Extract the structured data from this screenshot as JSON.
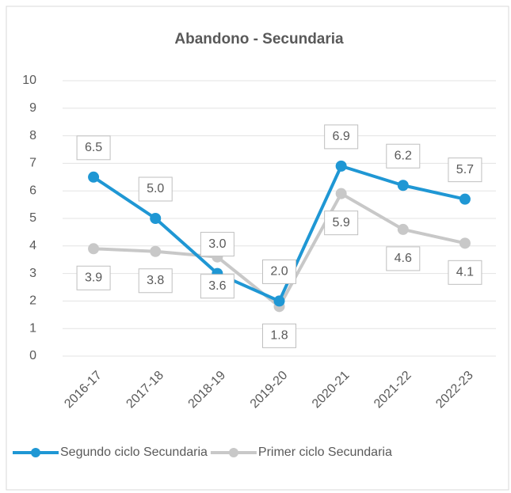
{
  "chart_data": {
    "type": "line",
    "title": "Abandono - Secundaria",
    "categories": [
      "2016-17",
      "2017-18",
      "2018-19",
      "2019-20",
      "2020-21",
      "2021-22",
      "2022-23"
    ],
    "series": [
      {
        "name": "Segundo ciclo Secundaria",
        "color": "#1f97d4",
        "values": [
          6.5,
          5.0,
          3.0,
          2.0,
          6.9,
          6.2,
          5.7
        ],
        "value_labels": [
          "6.5",
          "5.0",
          "3.0",
          "2.0",
          "6.9",
          "6.2",
          "5.7"
        ]
      },
      {
        "name": "Primer ciclo Secundaria",
        "color": "#c8c8c8",
        "values": [
          3.9,
          3.8,
          3.6,
          1.8,
          5.9,
          4.6,
          4.1
        ],
        "value_labels": [
          "3.9",
          "3.8",
          "3.6",
          "1.8",
          "5.9",
          "4.6",
          "4.1"
        ]
      }
    ],
    "ylim": [
      0,
      10
    ],
    "yticks": [
      0,
      1,
      2,
      3,
      4,
      5,
      6,
      7,
      8,
      9,
      10
    ],
    "grid": true,
    "legend": "bottom"
  }
}
